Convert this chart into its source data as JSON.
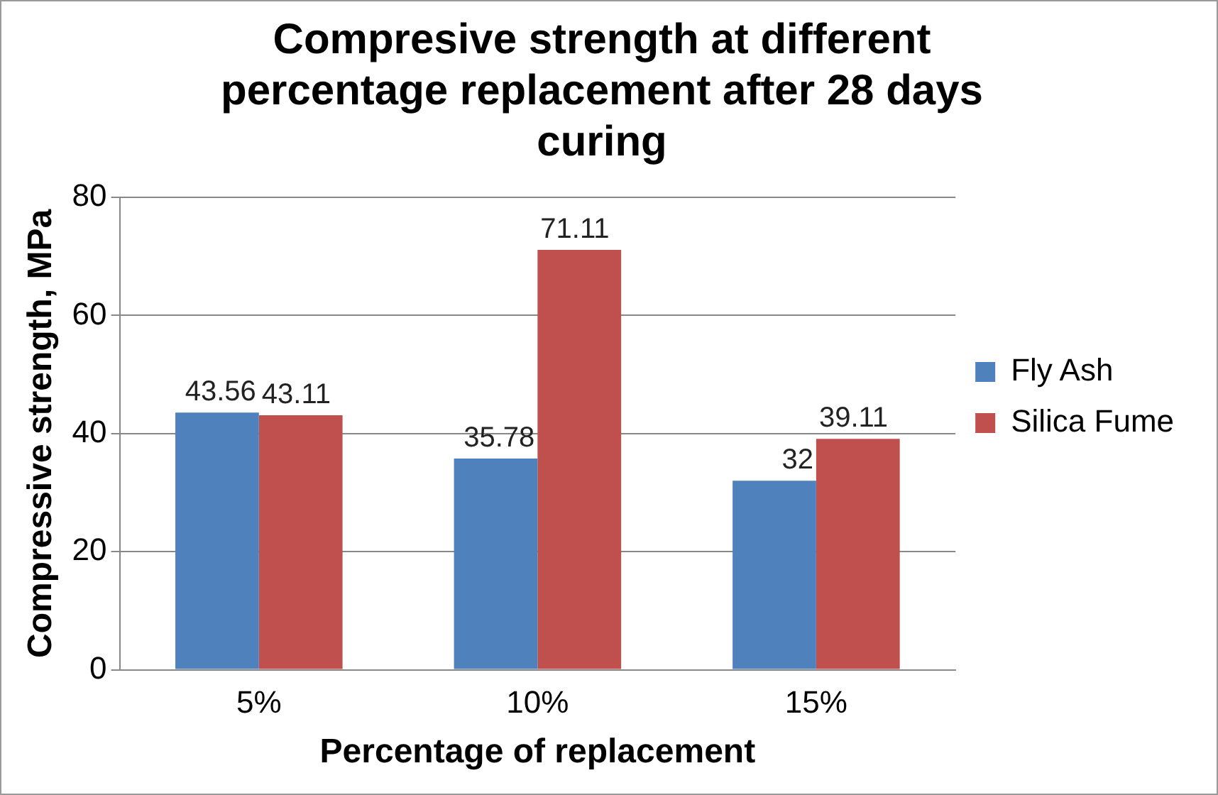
{
  "chart_data": {
    "type": "bar",
    "title": "Compresive strength at different percentage replacement after 28 days curing",
    "xlabel": "Percentage of replacement",
    "ylabel": "Compressive strength, MPa",
    "categories": [
      "5%",
      "10%",
      "15%"
    ],
    "series": [
      {
        "name": "Fly Ash",
        "color": "#4f81bd",
        "values": [
          43.56,
          35.78,
          32
        ]
      },
      {
        "name": "Silica Fume",
        "color": "#c0504d",
        "values": [
          43.11,
          71.11,
          39.11
        ]
      }
    ],
    "ylim": [
      0,
      80
    ],
    "yticks": [
      0,
      20,
      40,
      60,
      80
    ],
    "grid": "y",
    "legend": "right",
    "data_labels": true
  }
}
